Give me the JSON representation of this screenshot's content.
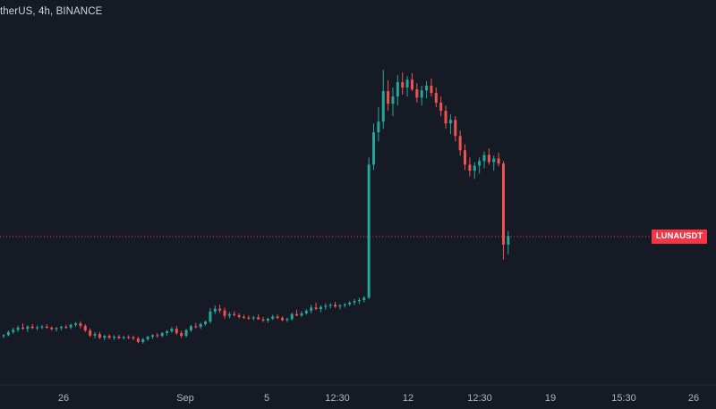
{
  "header": {
    "title": "therUS, 4h, BINANCE"
  },
  "price_label": {
    "symbol": "LUNAUSDT"
  },
  "colors": {
    "background": "#161a25",
    "up": "#26a69a",
    "down": "#ef5350",
    "price_line": "#f23645",
    "axis_text": "#b2b5be"
  },
  "chart_data": {
    "type": "candlestick",
    "title": "",
    "xlabel": "",
    "ylabel": "",
    "y_axis_visible": false,
    "grid": false,
    "x_ticks": [
      "26",
      "Sep",
      "5",
      "12:30",
      "12",
      "12:30",
      "19",
      "15:30",
      "26"
    ],
    "series": [
      {
        "candles": [
          [
            1.27,
            1.32,
            1.21,
            1.29
          ],
          [
            1.29,
            1.42,
            1.26,
            1.38
          ],
          [
            1.38,
            1.5,
            1.33,
            1.44
          ],
          [
            1.44,
            1.56,
            1.38,
            1.5
          ],
          [
            1.5,
            1.62,
            1.44,
            1.47
          ],
          [
            1.47,
            1.57,
            1.38,
            1.53
          ],
          [
            1.53,
            1.6,
            1.46,
            1.49
          ],
          [
            1.49,
            1.56,
            1.43,
            1.51
          ],
          [
            1.51,
            1.58,
            1.46,
            1.53
          ],
          [
            1.53,
            1.59,
            1.47,
            1.5
          ],
          [
            1.5,
            1.54,
            1.42,
            1.46
          ],
          [
            1.46,
            1.52,
            1.39,
            1.49
          ],
          [
            1.49,
            1.56,
            1.43,
            1.52
          ],
          [
            1.52,
            1.58,
            1.47,
            1.51
          ],
          [
            1.51,
            1.61,
            1.46,
            1.58
          ],
          [
            1.58,
            1.66,
            1.52,
            1.62
          ],
          [
            1.62,
            1.68,
            1.48,
            1.55
          ],
          [
            1.55,
            1.6,
            1.38,
            1.42
          ],
          [
            1.42,
            1.48,
            1.24,
            1.28
          ],
          [
            1.28,
            1.38,
            1.2,
            1.32
          ],
          [
            1.32,
            1.38,
            1.18,
            1.22
          ],
          [
            1.22,
            1.3,
            1.15,
            1.27
          ],
          [
            1.27,
            1.31,
            1.18,
            1.22
          ],
          [
            1.22,
            1.29,
            1.16,
            1.25
          ],
          [
            1.25,
            1.3,
            1.18,
            1.21
          ],
          [
            1.21,
            1.27,
            1.17,
            1.24
          ],
          [
            1.24,
            1.29,
            1.18,
            1.23
          ],
          [
            1.23,
            1.28,
            1.15,
            1.2
          ],
          [
            1.2,
            1.25,
            1.07,
            1.1
          ],
          [
            1.1,
            1.21,
            1.05,
            1.18
          ],
          [
            1.18,
            1.27,
            1.13,
            1.25
          ],
          [
            1.25,
            1.32,
            1.19,
            1.29
          ],
          [
            1.29,
            1.35,
            1.22,
            1.27
          ],
          [
            1.27,
            1.38,
            1.23,
            1.35
          ],
          [
            1.35,
            1.44,
            1.28,
            1.4
          ],
          [
            1.4,
            1.52,
            1.35,
            1.47
          ],
          [
            1.47,
            1.55,
            1.3,
            1.35
          ],
          [
            1.35,
            1.42,
            1.21,
            1.27
          ],
          [
            1.27,
            1.47,
            1.23,
            1.43
          ],
          [
            1.43,
            1.58,
            1.38,
            1.54
          ],
          [
            1.54,
            1.63,
            1.48,
            1.52
          ],
          [
            1.52,
            1.64,
            1.46,
            1.6
          ],
          [
            1.6,
            1.7,
            1.55,
            1.67
          ],
          [
            1.67,
            2.05,
            1.62,
            1.95
          ],
          [
            1.95,
            2.12,
            1.88,
            2.03
          ],
          [
            2.03,
            2.14,
            1.91,
            1.98
          ],
          [
            1.98,
            2.06,
            1.75,
            1.83
          ],
          [
            1.83,
            1.94,
            1.76,
            1.88
          ],
          [
            1.88,
            1.96,
            1.81,
            1.85
          ],
          [
            1.85,
            1.9,
            1.76,
            1.8
          ],
          [
            1.8,
            1.86,
            1.74,
            1.78
          ],
          [
            1.78,
            1.84,
            1.72,
            1.76
          ],
          [
            1.76,
            1.83,
            1.7,
            1.79
          ],
          [
            1.79,
            1.87,
            1.74,
            1.73
          ],
          [
            1.73,
            1.8,
            1.66,
            1.7
          ],
          [
            1.7,
            1.78,
            1.64,
            1.75
          ],
          [
            1.75,
            1.86,
            1.71,
            1.81
          ],
          [
            1.81,
            1.87,
            1.74,
            1.77
          ],
          [
            1.77,
            1.82,
            1.68,
            1.71
          ],
          [
            1.71,
            1.78,
            1.66,
            1.74
          ],
          [
            1.74,
            1.92,
            1.7,
            1.88
          ],
          [
            1.88,
            2.0,
            1.82,
            1.84
          ],
          [
            1.84,
            1.96,
            1.8,
            1.9
          ],
          [
            1.9,
            2.02,
            1.86,
            1.97
          ],
          [
            1.97,
            2.14,
            1.9,
            2.06
          ],
          [
            2.06,
            2.2,
            1.99,
            2.02
          ],
          [
            2.02,
            2.12,
            1.93,
            2.08
          ],
          [
            2.08,
            2.18,
            2.0,
            2.11
          ],
          [
            2.11,
            2.18,
            2.04,
            2.14
          ],
          [
            2.14,
            2.22,
            2.05,
            2.09
          ],
          [
            2.09,
            2.16,
            2.01,
            2.12
          ],
          [
            2.12,
            2.19,
            2.06,
            2.15
          ],
          [
            2.15,
            2.24,
            2.1,
            2.2
          ],
          [
            2.2,
            2.3,
            2.13,
            2.24
          ],
          [
            2.24,
            2.34,
            2.16,
            2.27
          ],
          [
            2.27,
            2.38,
            2.21,
            2.34
          ],
          [
            2.34,
            6.25,
            2.3,
            6.05
          ],
          [
            6.05,
            7.2,
            5.9,
            6.95
          ],
          [
            6.95,
            7.65,
            6.7,
            7.25
          ],
          [
            7.25,
            8.7,
            7.05,
            8.1
          ],
          [
            8.1,
            8.4,
            7.55,
            7.75
          ],
          [
            7.75,
            8.2,
            7.4,
            7.95
          ],
          [
            7.95,
            8.55,
            7.7,
            8.35
          ],
          [
            8.35,
            8.62,
            8.0,
            8.2
          ],
          [
            8.2,
            8.52,
            7.95,
            8.42
          ],
          [
            8.42,
            8.6,
            8.1,
            8.15
          ],
          [
            8.15,
            8.32,
            7.78,
            7.92
          ],
          [
            7.92,
            8.25,
            7.7,
            8.12
          ],
          [
            8.12,
            8.38,
            7.9,
            8.25
          ],
          [
            8.25,
            8.45,
            7.95,
            8.05
          ],
          [
            8.05,
            8.2,
            7.65,
            7.78
          ],
          [
            7.78,
            7.95,
            7.4,
            7.55
          ],
          [
            7.55,
            7.7,
            7.05,
            7.2
          ],
          [
            7.2,
            7.45,
            6.9,
            7.3
          ],
          [
            7.3,
            7.4,
            6.7,
            6.85
          ],
          [
            6.85,
            7.0,
            6.3,
            6.45
          ],
          [
            6.45,
            6.62,
            5.9,
            6.05
          ],
          [
            6.05,
            6.25,
            5.72,
            5.88
          ],
          [
            5.88,
            6.12,
            5.65,
            6.02
          ],
          [
            6.02,
            6.25,
            5.8,
            6.15
          ],
          [
            6.15,
            6.42,
            5.95,
            6.32
          ],
          [
            6.32,
            6.5,
            6.05,
            6.12
          ],
          [
            6.12,
            6.3,
            5.88,
            6.22
          ],
          [
            6.22,
            6.38,
            6.0,
            6.08
          ],
          [
            6.08,
            6.15,
            3.4,
            3.82
          ],
          [
            3.82,
            4.2,
            3.55,
            4.06
          ]
        ]
      }
    ],
    "last_price_line": 4.06
  }
}
